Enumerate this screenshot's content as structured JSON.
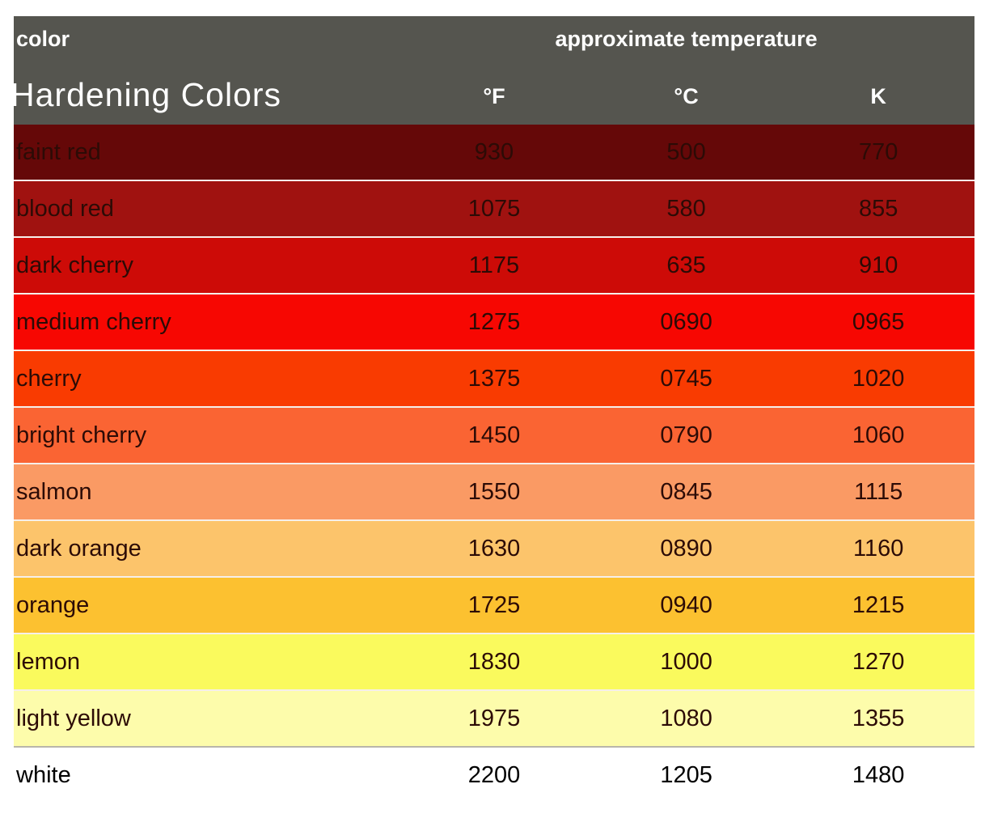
{
  "title": "Hardening Colors",
  "header": {
    "color_label": "color",
    "temp_label": "approximate temperature",
    "units": [
      "°F",
      "°C",
      "K"
    ]
  },
  "colors": {
    "header_bg": "#55554f",
    "header_text": "#ffffff",
    "row_text": "#2c0b06",
    "separator": "#f6efe9"
  },
  "rows": [
    {
      "name": "faint red",
      "f": "930",
      "c": "500",
      "k": "770",
      "swatch": "#650808"
    },
    {
      "name": "blood red",
      "f": "1075",
      "c": "580",
      "k": "855",
      "swatch": "#a01210"
    },
    {
      "name": "dark cherry",
      "f": "1175",
      "c": "635",
      "k": "910",
      "swatch": "#cd0b07"
    },
    {
      "name": "medium cherry",
      "f": "1275",
      "c": "0690",
      "k": "0965",
      "swatch": "#f70702"
    },
    {
      "name": "cherry",
      "f": "1375",
      "c": "0745",
      "k": "1020",
      "swatch": "#f93b01"
    },
    {
      "name": "bright cherry",
      "f": "1450",
      "c": "0790",
      "k": "1060",
      "swatch": "#fa6433"
    },
    {
      "name": "salmon",
      "f": "1550",
      "c": "0845",
      "k": "1115",
      "swatch": "#fa9a64"
    },
    {
      "name": "dark orange",
      "f": "1630",
      "c": "0890",
      "k": "1160",
      "swatch": "#fcc46b"
    },
    {
      "name": "orange",
      "f": "1725",
      "c": "0940",
      "k": "1215",
      "swatch": "#fcc130"
    },
    {
      "name": "lemon",
      "f": "1830",
      "c": "1000",
      "k": "1270",
      "swatch": "#fafa5d"
    },
    {
      "name": "light yellow",
      "f": "1975",
      "c": "1080",
      "k": "1355",
      "swatch": "#fdfcab"
    },
    {
      "name": "white",
      "f": "2200",
      "c": "1205",
      "k": "1480",
      "swatch": "#ffffff"
    }
  ],
  "chart_data": {
    "type": "table",
    "title": "Hardening Colors",
    "columns": [
      "color",
      "°F",
      "°C",
      "K"
    ],
    "column_group": "approximate temperature",
    "rows": [
      [
        "faint red",
        "930",
        "500",
        "770"
      ],
      [
        "blood red",
        "1075",
        "580",
        "855"
      ],
      [
        "dark cherry",
        "1175",
        "635",
        "910"
      ],
      [
        "medium cherry",
        "1275",
        "0690",
        "0965"
      ],
      [
        "cherry",
        "1375",
        "0745",
        "1020"
      ],
      [
        "bright cherry",
        "1450",
        "0790",
        "1060"
      ],
      [
        "salmon",
        "1550",
        "0845",
        "1115"
      ],
      [
        "dark orange",
        "1630",
        "0890",
        "1160"
      ],
      [
        "orange",
        "1725",
        "0940",
        "1215"
      ],
      [
        "lemon",
        "1830",
        "1000",
        "1270"
      ],
      [
        "light yellow",
        "1975",
        "1080",
        "1355"
      ],
      [
        "white",
        "2200",
        "1205",
        "1480"
      ]
    ]
  }
}
